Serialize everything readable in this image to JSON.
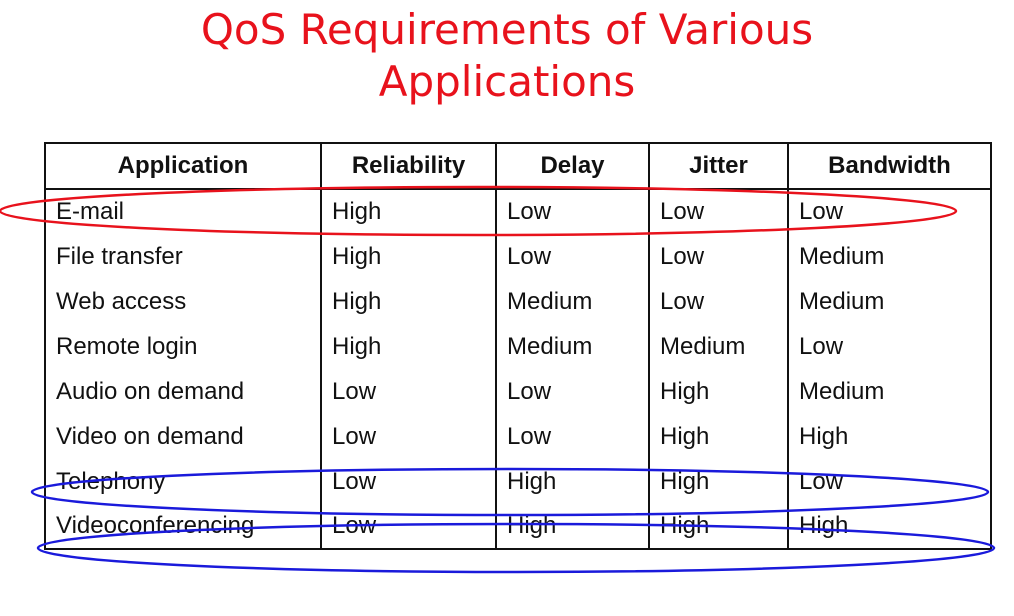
{
  "title": {
    "line1": "QoS Requirements of Various",
    "line2": "Applications"
  },
  "table": {
    "headers": [
      "Application",
      "Reliability",
      "Delay",
      "Jitter",
      "Bandwidth"
    ],
    "rows": [
      [
        "E-mail",
        "High",
        "Low",
        "Low",
        "Low"
      ],
      [
        "File transfer",
        "High",
        "Low",
        "Low",
        "Medium"
      ],
      [
        "Web access",
        "High",
        "Medium",
        "Low",
        "Medium"
      ],
      [
        "Remote login",
        "High",
        "Medium",
        "Medium",
        "Low"
      ],
      [
        "Audio on demand",
        "Low",
        "Low",
        "High",
        "Medium"
      ],
      [
        "Video on demand",
        "Low",
        "Low",
        "High",
        "High"
      ],
      [
        "Telephony",
        "Low",
        "High",
        "High",
        "Low"
      ],
      [
        "Videoconferencing",
        "Low",
        "High",
        "High",
        "High"
      ]
    ]
  },
  "annotations": {
    "email_highlight_color": "#e8121c",
    "realtime_highlight_color": "#1a1adb"
  }
}
